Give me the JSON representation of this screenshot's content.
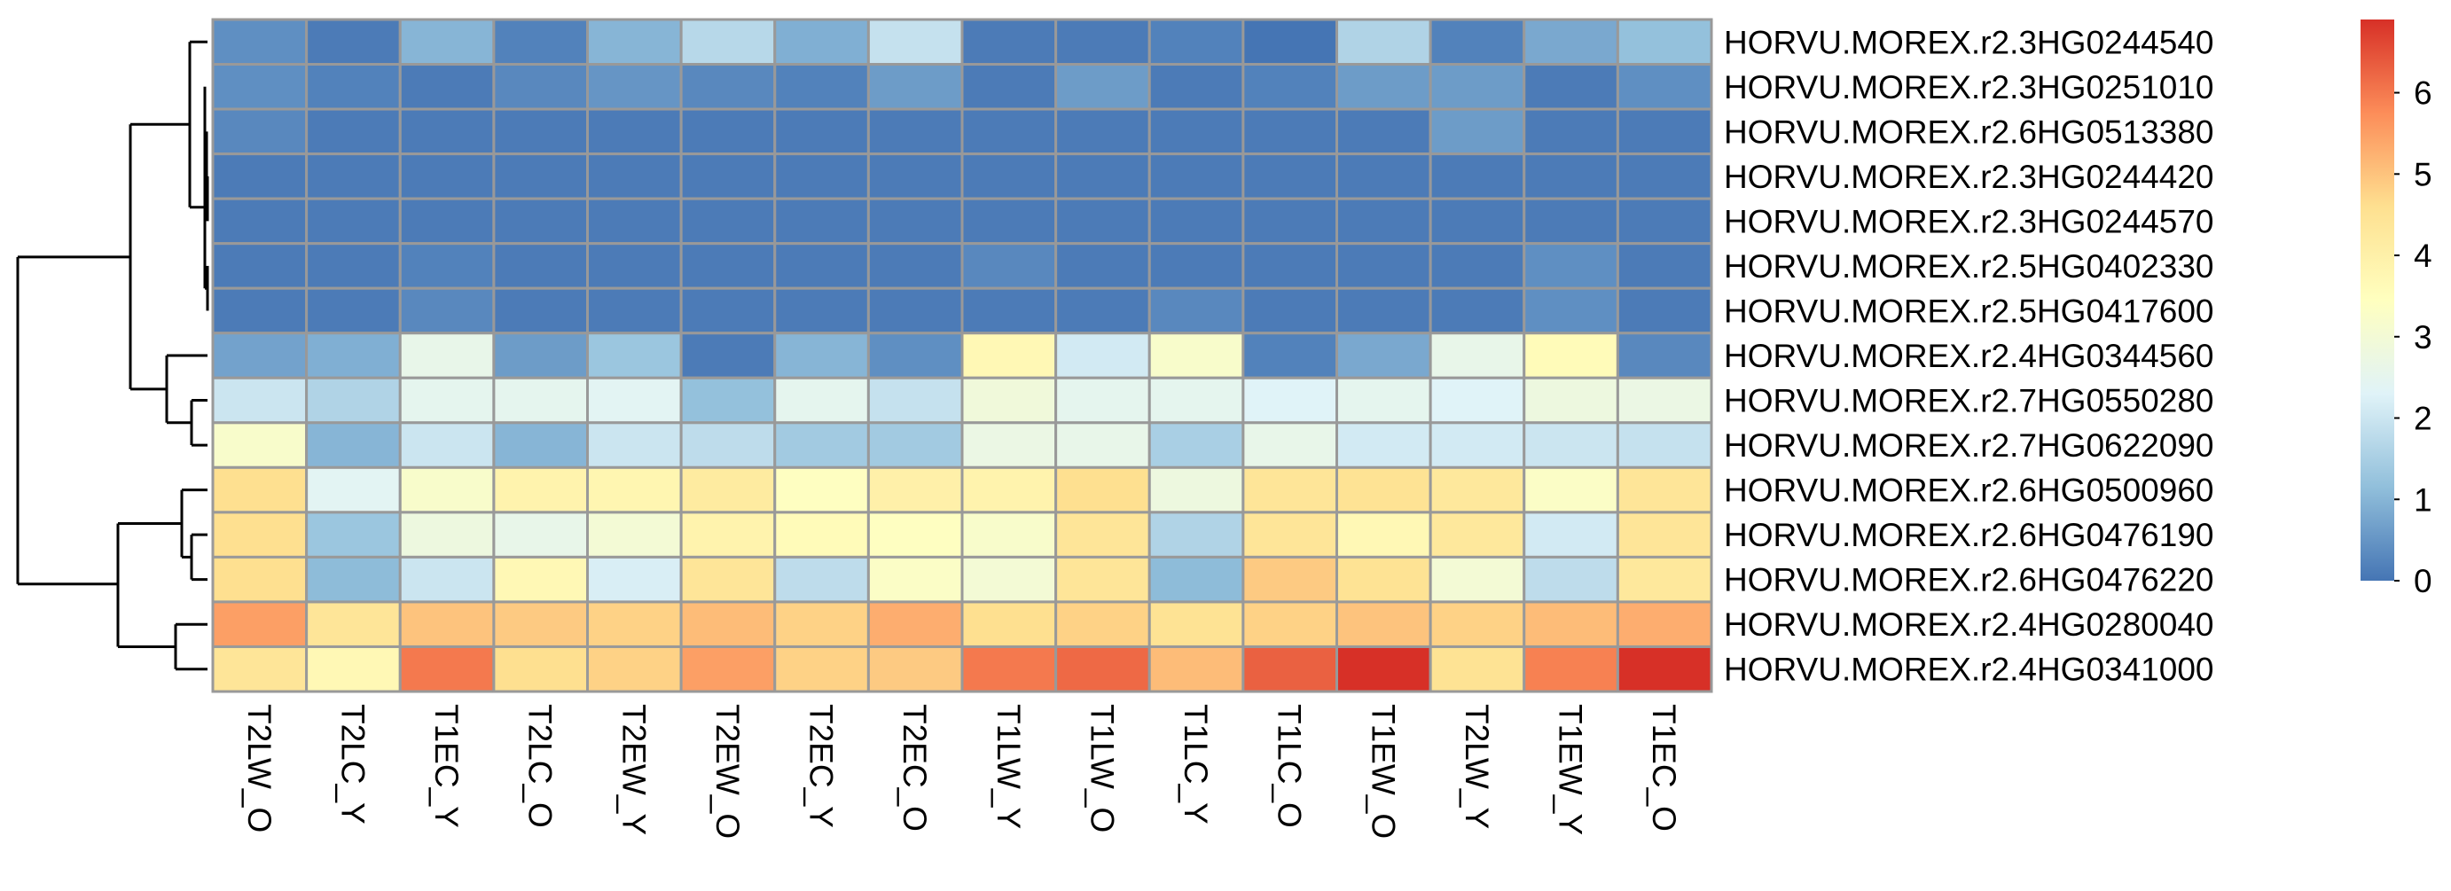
{
  "chart_data": {
    "type": "heatmap",
    "title": "",
    "xlabel": "",
    "ylabel": "",
    "columns": [
      "T2LW_O",
      "T2LC_Y",
      "T1EC_Y",
      "T2LC_O",
      "T2EW_Y",
      "T2EW_O",
      "T2EC_Y",
      "T2EC_O",
      "T1LW_Y",
      "T1LW_O",
      "T1LC_Y",
      "T1LC_O",
      "T1EW_O",
      "T2LW_Y",
      "T1EW_Y",
      "T1EC_O"
    ],
    "rows": [
      "HORVU.MOREX.r2.3HG0244540",
      "HORVU.MOREX.r2.3HG0251010",
      "HORVU.MOREX.r2.6HG0513380",
      "HORVU.MOREX.r2.3HG0244420",
      "HORVU.MOREX.r2.3HG0244570",
      "HORVU.MOREX.r2.5HG0402330",
      "HORVU.MOREX.r2.5HG0417600",
      "HORVU.MOREX.r2.4HG0344560",
      "HORVU.MOREX.r2.7HG0550280",
      "HORVU.MOREX.r2.7HG0622090",
      "HORVU.MOREX.r2.6HG0500960",
      "HORVU.MOREX.r2.6HG0476190",
      "HORVU.MOREX.r2.6HG0476220",
      "HORVU.MOREX.r2.4HG0280040",
      "HORVU.MOREX.r2.4HG0341000"
    ],
    "values": [
      [
        0.4,
        0.1,
        1.0,
        0.2,
        1.0,
        1.7,
        0.9,
        1.9,
        0.1,
        0.1,
        0.2,
        0.0,
        1.6,
        0.2,
        0.8,
        1.2
      ],
      [
        0.4,
        0.2,
        0.1,
        0.3,
        0.5,
        0.3,
        0.2,
        0.6,
        0.1,
        0.6,
        0.1,
        0.2,
        0.6,
        0.6,
        0.1,
        0.4
      ],
      [
        0.3,
        0.1,
        0.1,
        0.1,
        0.1,
        0.1,
        0.1,
        0.1,
        0.1,
        0.1,
        0.1,
        0.1,
        0.1,
        0.6,
        0.1,
        0.1
      ],
      [
        0.1,
        0.1,
        0.1,
        0.1,
        0.1,
        0.1,
        0.1,
        0.1,
        0.1,
        0.1,
        0.1,
        0.1,
        0.1,
        0.1,
        0.1,
        0.1
      ],
      [
        0.1,
        0.1,
        0.1,
        0.1,
        0.1,
        0.1,
        0.1,
        0.1,
        0.1,
        0.1,
        0.1,
        0.1,
        0.1,
        0.1,
        0.1,
        0.1
      ],
      [
        0.1,
        0.1,
        0.2,
        0.1,
        0.1,
        0.1,
        0.1,
        0.1,
        0.3,
        0.1,
        0.1,
        0.1,
        0.1,
        0.1,
        0.4,
        0.1
      ],
      [
        0.1,
        0.1,
        0.3,
        0.1,
        0.1,
        0.1,
        0.1,
        0.1,
        0.1,
        0.1,
        0.3,
        0.1,
        0.1,
        0.1,
        0.4,
        0.1
      ],
      [
        0.7,
        0.9,
        2.6,
        0.6,
        1.3,
        0.1,
        1.0,
        0.4,
        3.7,
        2.1,
        3.2,
        0.2,
        0.8,
        2.6,
        3.6,
        0.3
      ],
      [
        2.0,
        1.6,
        2.5,
        2.5,
        2.4,
        1.2,
        2.5,
        1.9,
        2.9,
        2.5,
        2.5,
        2.3,
        2.5,
        2.3,
        2.8,
        2.7
      ],
      [
        3.2,
        1.0,
        2.0,
        1.0,
        2.0,
        1.8,
        1.4,
        1.4,
        2.7,
        2.6,
        1.5,
        2.6,
        2.1,
        2.1,
        2.0,
        1.9
      ],
      [
        4.6,
        2.4,
        3.2,
        3.9,
        3.8,
        4.2,
        3.4,
        4.0,
        3.9,
        4.6,
        2.8,
        4.4,
        4.5,
        4.3,
        3.3,
        4.4
      ],
      [
        4.6,
        1.3,
        2.8,
        2.6,
        3.0,
        3.9,
        3.6,
        3.4,
        3.2,
        4.4,
        1.6,
        4.4,
        3.7,
        4.3,
        2.1,
        4.4
      ],
      [
        4.6,
        1.1,
        2.0,
        3.7,
        2.2,
        4.4,
        1.8,
        3.3,
        3.0,
        4.4,
        1.1,
        4.9,
        4.5,
        3.0,
        1.8,
        4.3
      ],
      [
        5.5,
        4.4,
        5.0,
        4.9,
        4.8,
        5.1,
        4.8,
        5.3,
        4.6,
        4.8,
        4.5,
        4.8,
        5.0,
        4.8,
        5.1,
        5.3
      ],
      [
        4.4,
        3.7,
        6.0,
        4.6,
        4.8,
        5.5,
        4.8,
        4.9,
        6.0,
        6.2,
        5.1,
        6.3,
        6.9,
        4.5,
        5.9,
        6.9
      ]
    ],
    "legend": {
      "ticks": [
        0,
        1,
        2,
        3,
        4,
        5,
        6
      ],
      "min": 0,
      "max": 6.9,
      "colors": [
        "#4575B4",
        "#91BFDB",
        "#E0F3F8",
        "#FFFFBF",
        "#FEE090",
        "#FC8D59",
        "#D73027"
      ]
    },
    "cell_border_color": "#999999",
    "dendrogram": "rows"
  }
}
